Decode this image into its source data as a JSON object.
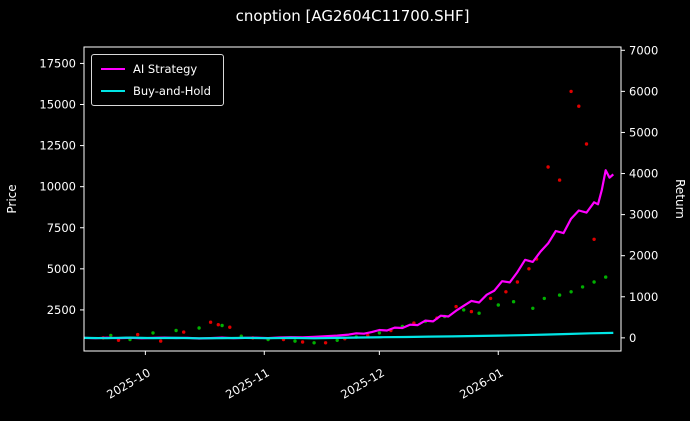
{
  "title": "cnoption [AG2604C11700.SHF]",
  "colors": {
    "background": "#000000",
    "foreground": "#ffffff",
    "ai_strategy": "#ff00ff",
    "buy_and_hold": "#00e5e5",
    "scatter_down": "#e00000",
    "scatter_up": "#00b000"
  },
  "legend": [
    {
      "label": "AI Strategy",
      "color": "#ff00ff"
    },
    {
      "label": "Buy-and-Hold",
      "color": "#00e5e5"
    }
  ],
  "chart_data": {
    "type": "line",
    "title": "cnoption [AG2604C11700.SHF]",
    "x_axis": {
      "min": 0,
      "max": 140,
      "ticks": [
        {
          "pos": 16,
          "label": "2025-10"
        },
        {
          "pos": 47,
          "label": "2025-11"
        },
        {
          "pos": 77,
          "label": "2025-12"
        },
        {
          "pos": 108,
          "label": "2026-01"
        }
      ]
    },
    "left_axis": {
      "label": "Price",
      "min": 0,
      "max": 18500,
      "ticks": [
        2500,
        5000,
        7500,
        10000,
        12500,
        15000,
        17500
      ]
    },
    "right_axis": {
      "label": "Return",
      "min": -320,
      "max": 7080,
      "ticks": [
        0,
        1000,
        2000,
        3000,
        4000,
        5000,
        6000,
        7000
      ]
    },
    "series": [
      {
        "name": "AI Strategy",
        "axis": "right",
        "color": "#ff00ff",
        "points": [
          [
            0,
            0
          ],
          [
            3,
            -8
          ],
          [
            6,
            4
          ],
          [
            9,
            -6
          ],
          [
            12,
            2
          ],
          [
            15,
            -12
          ],
          [
            18,
            0
          ],
          [
            21,
            6
          ],
          [
            24,
            -4
          ],
          [
            27,
            2
          ],
          [
            30,
            -15
          ],
          [
            33,
            -5
          ],
          [
            36,
            5
          ],
          [
            39,
            -8
          ],
          [
            42,
            0
          ],
          [
            45,
            4
          ],
          [
            48,
            -6
          ],
          [
            51,
            8
          ],
          [
            54,
            15
          ],
          [
            57,
            10
          ],
          [
            60,
            25
          ],
          [
            63,
            40
          ],
          [
            66,
            55
          ],
          [
            69,
            80
          ],
          [
            71,
            110
          ],
          [
            73,
            100
          ],
          [
            75,
            140
          ],
          [
            77,
            190
          ],
          [
            79,
            180
          ],
          [
            81,
            250
          ],
          [
            83,
            240
          ],
          [
            85,
            320
          ],
          [
            87,
            310
          ],
          [
            89,
            420
          ],
          [
            91,
            400
          ],
          [
            93,
            540
          ],
          [
            95,
            520
          ],
          [
            97,
            660
          ],
          [
            99,
            780
          ],
          [
            101,
            900
          ],
          [
            103,
            860
          ],
          [
            105,
            1050
          ],
          [
            107,
            1150
          ],
          [
            109,
            1380
          ],
          [
            111,
            1350
          ],
          [
            113,
            1600
          ],
          [
            115,
            1900
          ],
          [
            117,
            1850
          ],
          [
            119,
            2100
          ],
          [
            121,
            2300
          ],
          [
            123,
            2600
          ],
          [
            125,
            2550
          ],
          [
            127,
            2900
          ],
          [
            129,
            3100
          ],
          [
            131,
            3050
          ],
          [
            133,
            3300
          ],
          [
            134,
            3250
          ],
          [
            135,
            3600
          ],
          [
            136,
            4080
          ],
          [
            137,
            3900
          ],
          [
            138,
            3980
          ]
        ]
      },
      {
        "name": "Buy-and-Hold",
        "axis": "right",
        "color": "#00e5e5",
        "points": [
          [
            0,
            0
          ],
          [
            6,
            -8
          ],
          [
            12,
            5
          ],
          [
            18,
            -5
          ],
          [
            24,
            0
          ],
          [
            30,
            -12
          ],
          [
            36,
            -5
          ],
          [
            42,
            0
          ],
          [
            48,
            -8
          ],
          [
            54,
            0
          ],
          [
            60,
            -10
          ],
          [
            66,
            0
          ],
          [
            72,
            8
          ],
          [
            78,
            15
          ],
          [
            84,
            20
          ],
          [
            90,
            30
          ],
          [
            96,
            35
          ],
          [
            102,
            45
          ],
          [
            108,
            55
          ],
          [
            114,
            65
          ],
          [
            120,
            80
          ],
          [
            126,
            95
          ],
          [
            132,
            110
          ],
          [
            138,
            120
          ]
        ]
      }
    ],
    "scatter": [
      {
        "name": "price-down",
        "axis": "left",
        "color": "#e00000",
        "points": [
          [
            5,
            800
          ],
          [
            9,
            650
          ],
          [
            14,
            1000
          ],
          [
            20,
            600
          ],
          [
            26,
            1150
          ],
          [
            33,
            1750
          ],
          [
            35,
            1600
          ],
          [
            38,
            1450
          ],
          [
            44,
            800
          ],
          [
            52,
            700
          ],
          [
            57,
            550
          ],
          [
            63,
            500
          ],
          [
            68,
            750
          ],
          [
            74,
            950
          ],
          [
            80,
            1250
          ],
          [
            86,
            1700
          ],
          [
            92,
            2000
          ],
          [
            97,
            2700
          ],
          [
            101,
            2400
          ],
          [
            106,
            3200
          ],
          [
            110,
            3600
          ],
          [
            113,
            4200
          ],
          [
            116,
            5000
          ],
          [
            118,
            5600
          ],
          [
            121,
            11200
          ],
          [
            124,
            10400
          ],
          [
            127,
            15800
          ],
          [
            129,
            14900
          ],
          [
            131,
            12600
          ],
          [
            133,
            6800
          ]
        ]
      },
      {
        "name": "price-up",
        "axis": "left",
        "color": "#00b000",
        "points": [
          [
            7,
            950
          ],
          [
            12,
            700
          ],
          [
            18,
            1100
          ],
          [
            24,
            1250
          ],
          [
            30,
            1400
          ],
          [
            36,
            1550
          ],
          [
            41,
            900
          ],
          [
            48,
            700
          ],
          [
            55,
            600
          ],
          [
            60,
            500
          ],
          [
            66,
            650
          ],
          [
            71,
            850
          ],
          [
            77,
            1100
          ],
          [
            83,
            1500
          ],
          [
            89,
            1800
          ],
          [
            94,
            2100
          ],
          [
            99,
            2500
          ],
          [
            103,
            2300
          ],
          [
            108,
            2800
          ],
          [
            112,
            3000
          ],
          [
            117,
            2600
          ],
          [
            120,
            3200
          ],
          [
            124,
            3400
          ],
          [
            127,
            3600
          ],
          [
            130,
            3900
          ],
          [
            133,
            4200
          ],
          [
            136,
            4500
          ]
        ]
      }
    ]
  }
}
